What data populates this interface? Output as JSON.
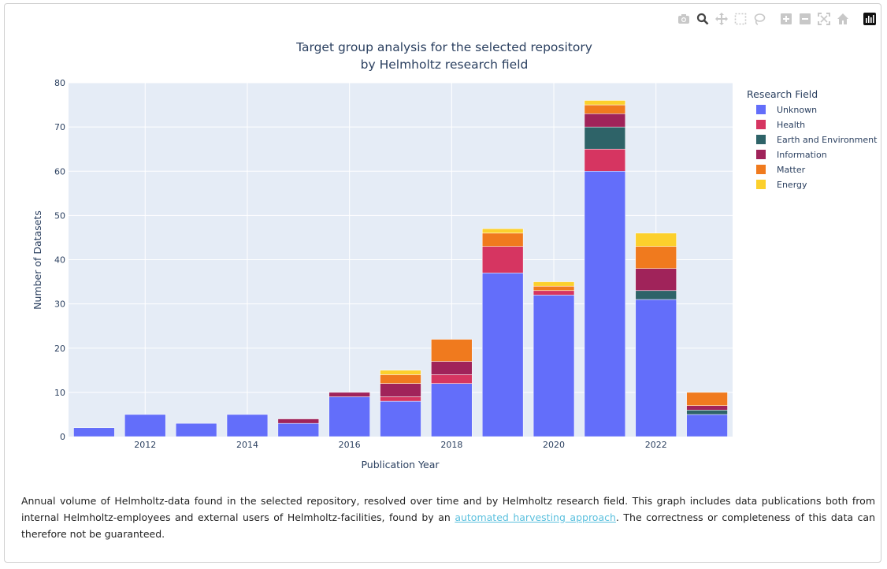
{
  "modebar": {
    "icons": [
      "camera-icon",
      "zoom-icon",
      "pan-icon",
      "box-select-icon",
      "lasso-select-icon",
      "zoom-in-icon",
      "zoom-out-icon",
      "autoscale-icon",
      "reset-axes-icon",
      "plotly-logo-icon"
    ]
  },
  "chart_data": {
    "type": "bar",
    "barmode": "stack",
    "title": "Target group analysis for the selected repository",
    "subtitle": "by Helmholtz research field",
    "xlabel": "Publication Year",
    "ylabel": "Number of Datasets",
    "ylim": [
      0,
      80
    ],
    "yticks": [
      0,
      10,
      20,
      30,
      40,
      50,
      60,
      70,
      80
    ],
    "x": [
      2011,
      2012,
      2013,
      2014,
      2015,
      2016,
      2017,
      2018,
      2019,
      2020,
      2021,
      2022,
      2023
    ],
    "xticks": [
      2012,
      2014,
      2016,
      2018,
      2020,
      2022
    ],
    "legend_title": "Research Field",
    "legend_position": "right",
    "series": [
      {
        "name": "Unknown",
        "color": "#636efa",
        "values": [
          2,
          5,
          3,
          5,
          3,
          9,
          8,
          12,
          37,
          32,
          60,
          31,
          5
        ]
      },
      {
        "name": "Health",
        "color": "#d63561",
        "values": [
          0,
          0,
          0,
          0,
          0,
          0,
          1,
          2,
          6,
          1,
          5,
          0,
          0
        ]
      },
      {
        "name": "Earth and Environment",
        "color": "#2e6368",
        "values": [
          0,
          0,
          0,
          0,
          0,
          0,
          0,
          0,
          0,
          0,
          5,
          2,
          1
        ]
      },
      {
        "name": "Information",
        "color": "#a0235a",
        "values": [
          0,
          0,
          0,
          0,
          1,
          1,
          3,
          3,
          0,
          0,
          3,
          5,
          1
        ]
      },
      {
        "name": "Matter",
        "color": "#f07a1e",
        "values": [
          0,
          0,
          0,
          0,
          0,
          0,
          2,
          5,
          3,
          1,
          2,
          5,
          3
        ]
      },
      {
        "name": "Energy",
        "color": "#fcd02c",
        "values": [
          0,
          0,
          0,
          0,
          0,
          0,
          1,
          0,
          1,
          1,
          1,
          3,
          0
        ]
      }
    ]
  },
  "caption": {
    "before_link": "Annual volume of Helmholtz-data found in the selected repository, resolved over time and by Helmholtz research field. This graph includes data publications both from internal Helmholtz-employees and external users of Helmholtz-facilities, found by an ",
    "link_text": "automated harvesting approach",
    "after_link": ". The correctness or completeness of this data can therefore not be guaranteed."
  }
}
